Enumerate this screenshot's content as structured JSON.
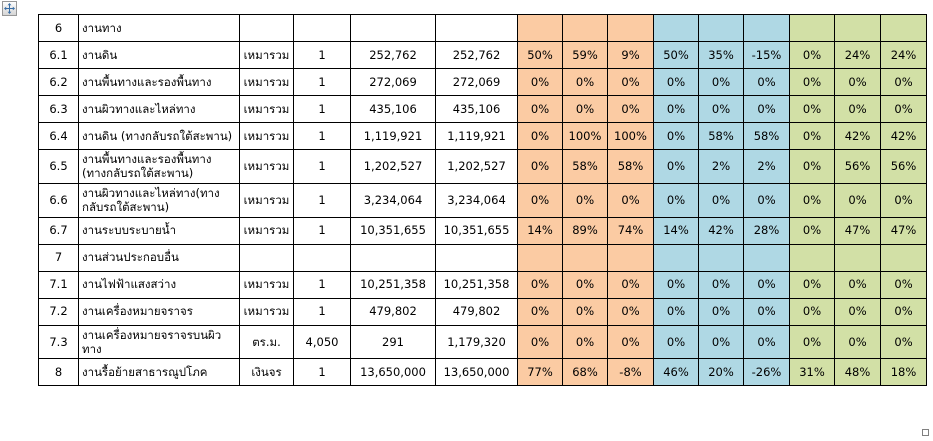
{
  "app": {
    "kind": "word-document-table",
    "move_handle_icon": "four-way-arrow-icon",
    "resize_handle_icon": "resize-square-icon"
  },
  "colors": {
    "orange_group": "#FBCBA3",
    "blue_group": "#AFD8E4",
    "green_group": "#D2E0A6",
    "grid_border": "#000000",
    "page_background": "#ffffff",
    "move_arrow": "#3a6ea5"
  },
  "table": {
    "columns": [
      "item_no",
      "description",
      "unit",
      "quantity",
      "unit_price",
      "amount",
      "pct_orange_1",
      "pct_orange_2",
      "pct_orange_3",
      "pct_blue_1",
      "pct_blue_2",
      "pct_blue_3",
      "pct_green_1",
      "pct_green_2",
      "pct_green_3"
    ],
    "rows": [
      {
        "no": "6",
        "desc": "งานทาง",
        "unit": "",
        "qty": "",
        "price": "",
        "total": "",
        "pct": [
          "",
          "",
          "",
          "",
          "",
          "",
          "",
          "",
          ""
        ]
      },
      {
        "no": "6.1",
        "desc": "งานดิน",
        "unit": "เหมารวม",
        "qty": "1",
        "price": "252,762",
        "total": "252,762",
        "pct": [
          "50%",
          "59%",
          "9%",
          "50%",
          "35%",
          "-15%",
          "0%",
          "24%",
          "24%"
        ]
      },
      {
        "no": "6.2",
        "desc": "งานพื้นทางและรองพื้นทาง",
        "unit": "เหมารวม",
        "qty": "1",
        "price": "272,069",
        "total": "272,069",
        "pct": [
          "0%",
          "0%",
          "0%",
          "0%",
          "0%",
          "0%",
          "0%",
          "0%",
          "0%"
        ]
      },
      {
        "no": "6.3",
        "desc": "งานผิวทางและไหล่ทาง",
        "unit": "เหมารวม",
        "qty": "1",
        "price": "435,106",
        "total": "435,106",
        "pct": [
          "0%",
          "0%",
          "0%",
          "0%",
          "0%",
          "0%",
          "0%",
          "0%",
          "0%"
        ]
      },
      {
        "no": "6.4",
        "desc": "งานดิน (ทางกลับรถใต้สะพาน)",
        "unit": "เหมารวม",
        "qty": "1",
        "price": "1,119,921",
        "total": "1,119,921",
        "pct": [
          "0%",
          "100%",
          "100%",
          "0%",
          "58%",
          "58%",
          "0%",
          "42%",
          "42%"
        ]
      },
      {
        "no": "6.5",
        "desc": "งานพื้นทางและรองพื้นทาง (ทางกลับรถใต้สะพาน)",
        "unit": "เหมารวม",
        "qty": "1",
        "price": "1,202,527",
        "total": "1,202,527",
        "pct": [
          "0%",
          "58%",
          "58%",
          "0%",
          "2%",
          "2%",
          "0%",
          "56%",
          "56%"
        ]
      },
      {
        "no": "6.6",
        "desc": "งานผิวทางและไหล่ทาง(ทางกลับรถใต้สะพาน)",
        "unit": "เหมารวม",
        "qty": "1",
        "price": "3,234,064",
        "total": "3,234,064",
        "pct": [
          "0%",
          "0%",
          "0%",
          "0%",
          "0%",
          "0%",
          "0%",
          "0%",
          "0%"
        ]
      },
      {
        "no": "6.7",
        "desc": "งานระบบระบายน้ำ",
        "unit": "เหมารวม",
        "qty": "1",
        "price": "10,351,655",
        "total": "10,351,655",
        "pct": [
          "14%",
          "89%",
          "74%",
          "14%",
          "42%",
          "28%",
          "0%",
          "47%",
          "47%"
        ]
      },
      {
        "no": "7",
        "desc": "งานส่วนประกอบอื่น",
        "unit": "",
        "qty": "",
        "price": "",
        "total": "",
        "pct": [
          "",
          "",
          "",
          "",
          "",
          "",
          "",
          "",
          ""
        ]
      },
      {
        "no": "7.1",
        "desc": "งานไฟฟ้าแสงสว่าง",
        "unit": "เหมารวม",
        "qty": "1",
        "price": "10,251,358",
        "total": "10,251,358",
        "pct": [
          "0%",
          "0%",
          "0%",
          "0%",
          "0%",
          "0%",
          "0%",
          "0%",
          "0%"
        ]
      },
      {
        "no": "7.2",
        "desc": "งานเครื่องหมายจราจร",
        "unit": "เหมารวม",
        "qty": "1",
        "price": "479,802",
        "total": "479,802",
        "pct": [
          "0%",
          "0%",
          "0%",
          "0%",
          "0%",
          "0%",
          "0%",
          "0%",
          "0%"
        ]
      },
      {
        "no": "7.3",
        "desc": "งานเครื่องหมายจราจรบนผิวทาง",
        "unit": "ตร.ม.",
        "qty": "4,050",
        "price": "291",
        "total": "1,179,320",
        "pct": [
          "0%",
          "0%",
          "0%",
          "0%",
          "0%",
          "0%",
          "0%",
          "0%",
          "0%"
        ]
      },
      {
        "no": "8",
        "desc": "งานรื้อย้ายสาธารณูปโภค",
        "unit": "เงินจร",
        "qty": "1",
        "price": "13,650,000",
        "total": "13,650,000",
        "pct": [
          "77%",
          "68%",
          "-8%",
          "46%",
          "20%",
          "-26%",
          "31%",
          "48%",
          "18%"
        ]
      }
    ]
  }
}
